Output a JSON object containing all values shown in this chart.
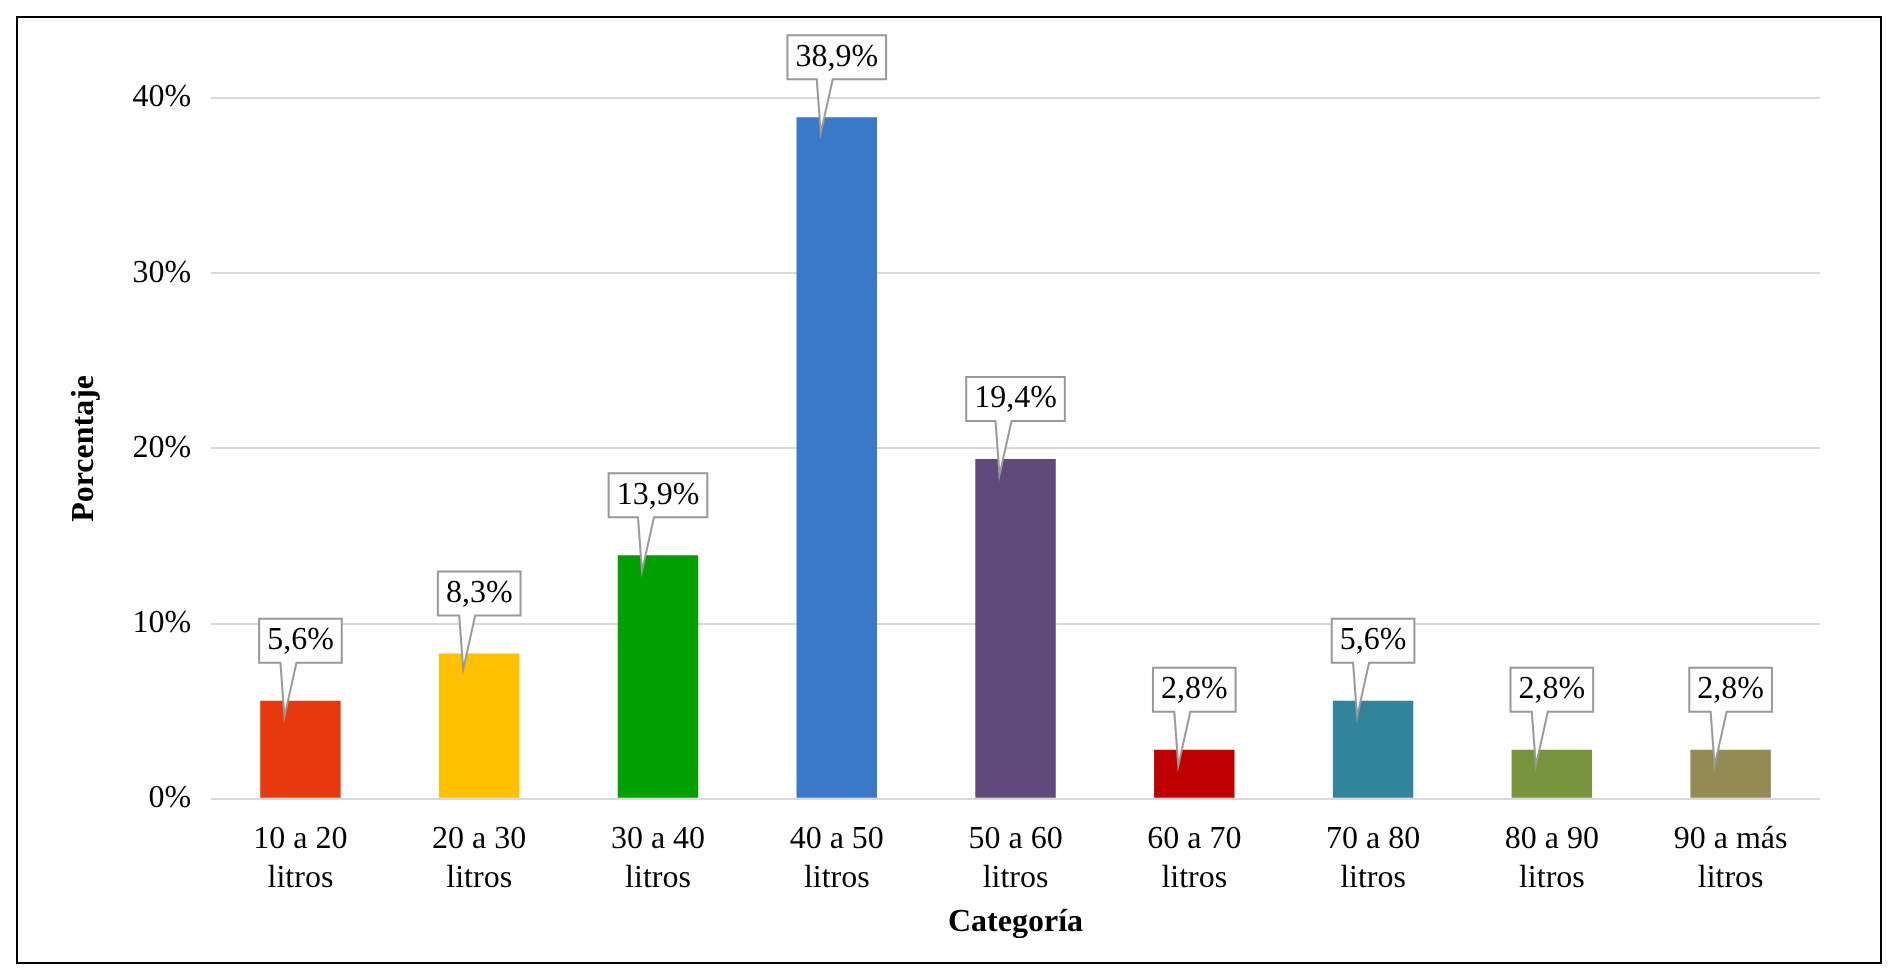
{
  "chart_data": {
    "type": "bar",
    "xlabel": "Categoría",
    "ylabel": "Porcentaje",
    "categories": [
      "10 a 20 litros",
      "20 a 30 litros",
      "30 a 40 litros",
      "40 a 50 litros",
      "50 a 60 litros",
      "60 a 70 litros",
      "70 a 80 litros",
      "80 a 90 litros",
      "90 a más litros"
    ],
    "values": [
      5.6,
      8.3,
      13.9,
      38.9,
      19.4,
      2.8,
      5.6,
      2.8,
      2.8
    ],
    "colors": [
      "#e8380d",
      "#ffc000",
      "#00a000",
      "#3a78c8",
      "#604a7b",
      "#c00000",
      "#31849b",
      "#77933c",
      "#948a54"
    ],
    "value_labels": [
      "5,6%",
      "8,3%",
      "13,9%",
      "38,9%",
      "19,4%",
      "2,8%",
      "5,6%",
      "2,8%",
      "2,8%"
    ],
    "ylim": [
      0,
      40
    ],
    "yticks": [
      {
        "value": 0,
        "label": "0%"
      },
      {
        "value": 10,
        "label": "10%"
      },
      {
        "value": 20,
        "label": "20%"
      },
      {
        "value": 30,
        "label": "30%"
      },
      {
        "value": 40,
        "label": "40%"
      }
    ],
    "grid": "y",
    "legend": false
  }
}
